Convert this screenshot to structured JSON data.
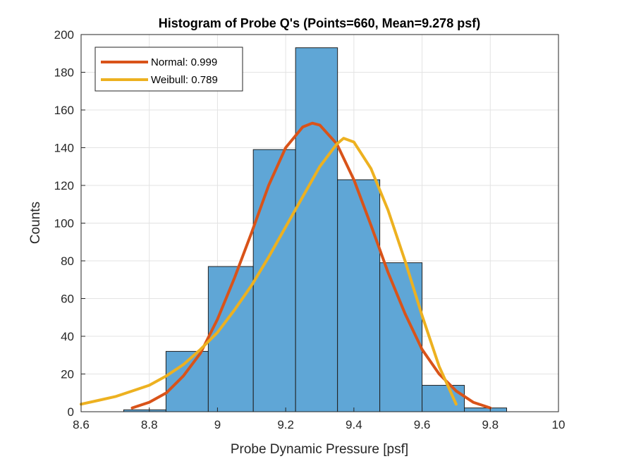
{
  "chart_data": {
    "type": "histogram",
    "title": "Histogram of Probe Q's (Points=660, Mean=9.278 psf)",
    "xlabel": "Probe Dynamic Pressure [psf]",
    "ylabel": "Counts",
    "xlim": [
      8.6,
      10
    ],
    "ylim": [
      0,
      200
    ],
    "xticks": [
      "8.6",
      "8.8",
      "9",
      "9.2",
      "9.4",
      "9.6",
      "9.8",
      "10"
    ],
    "yticks": [
      "0",
      "20",
      "40",
      "60",
      "80",
      "100",
      "120",
      "140",
      "160",
      "180",
      "200"
    ],
    "grid": true,
    "legend_position": "top-left",
    "bin_edges": [
      8.725,
      8.849,
      8.973,
      9.105,
      9.229,
      9.352,
      9.476,
      9.6,
      9.724,
      9.848
    ],
    "counts": [
      1,
      32,
      77,
      139,
      193,
      123,
      79,
      14,
      2
    ],
    "bar_color": "#5fa6d6",
    "series": [
      {
        "name": "Normal: 0.999",
        "color": "#d95319",
        "points": [
          [
            8.75,
            2
          ],
          [
            8.8,
            5
          ],
          [
            8.85,
            10
          ],
          [
            8.9,
            19
          ],
          [
            8.95,
            31
          ],
          [
            9.0,
            49
          ],
          [
            9.05,
            71
          ],
          [
            9.1,
            95
          ],
          [
            9.15,
            120
          ],
          [
            9.2,
            140
          ],
          [
            9.25,
            151
          ],
          [
            9.278,
            153
          ],
          [
            9.3,
            152
          ],
          [
            9.35,
            142
          ],
          [
            9.4,
            123
          ],
          [
            9.45,
            99
          ],
          [
            9.5,
            74
          ],
          [
            9.55,
            52
          ],
          [
            9.6,
            33
          ],
          [
            9.65,
            20
          ],
          [
            9.7,
            11
          ],
          [
            9.75,
            5
          ],
          [
            9.8,
            2
          ]
        ]
      },
      {
        "name": "Weibull: 0.789",
        "color": "#edb120",
        "points": [
          [
            8.6,
            4
          ],
          [
            8.65,
            6
          ],
          [
            8.7,
            8
          ],
          [
            8.75,
            11
          ],
          [
            8.8,
            14
          ],
          [
            8.85,
            19
          ],
          [
            8.9,
            25
          ],
          [
            8.95,
            33
          ],
          [
            9.0,
            42
          ],
          [
            9.05,
            54
          ],
          [
            9.1,
            67
          ],
          [
            9.15,
            82
          ],
          [
            9.2,
            98
          ],
          [
            9.25,
            114
          ],
          [
            9.3,
            130
          ],
          [
            9.35,
            142
          ],
          [
            9.37,
            145
          ],
          [
            9.4,
            143
          ],
          [
            9.45,
            129
          ],
          [
            9.5,
            107
          ],
          [
            9.55,
            80
          ],
          [
            9.6,
            51
          ],
          [
            9.65,
            24
          ],
          [
            9.7,
            4
          ]
        ]
      }
    ]
  }
}
